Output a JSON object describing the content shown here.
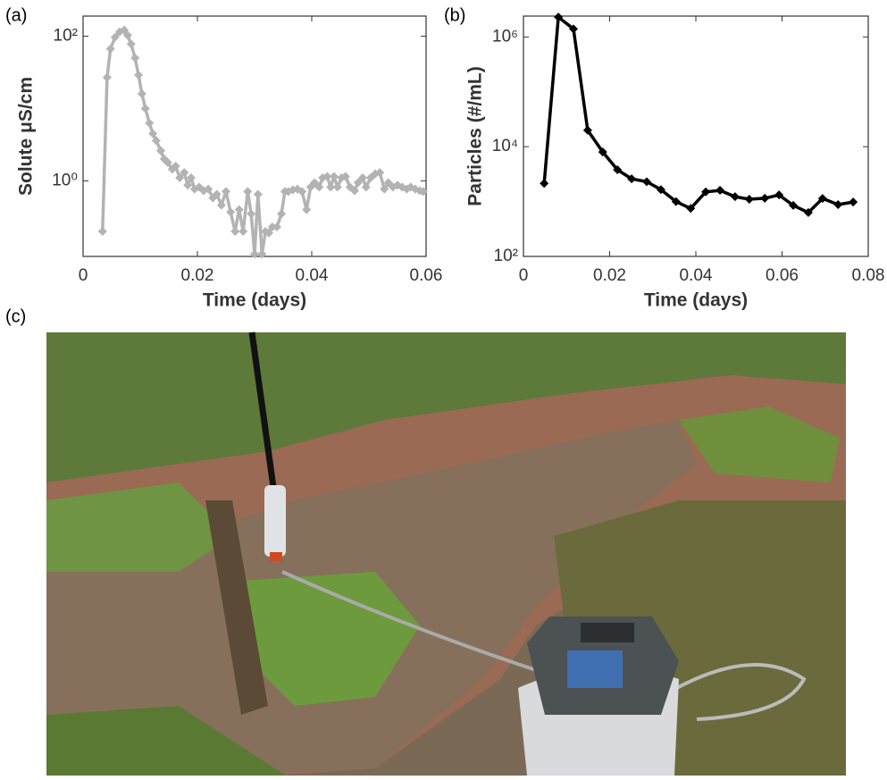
{
  "chart_data": [
    {
      "type": "line",
      "label": "(a)",
      "xlabel": "Time (days)",
      "ylabel": "Solute μS/cm",
      "color": "#b3b3b3",
      "log_y": true,
      "xlim": [
        0,
        0.06
      ],
      "xticks": [
        0,
        0.02,
        0.04,
        0.06
      ],
      "ylim": [
        0.09,
        190
      ],
      "yticks": [
        {
          "value": 1,
          "label": "10⁰"
        },
        {
          "value": 100,
          "label": "10²"
        }
      ],
      "x": [
        0.0034,
        0.0042,
        0.0048,
        0.0056,
        0.0064,
        0.0072,
        0.0078,
        0.0084,
        0.0091,
        0.0097,
        0.0103,
        0.0109,
        0.0116,
        0.0122,
        0.0128,
        0.0136,
        0.0142,
        0.0148,
        0.0156,
        0.0162,
        0.0169,
        0.0177,
        0.0183,
        0.0189,
        0.0195,
        0.0203,
        0.0211,
        0.0219,
        0.0227,
        0.0234,
        0.0242,
        0.025,
        0.0258,
        0.0266,
        0.0273,
        0.028,
        0.0288,
        0.0294,
        0.03,
        0.0306,
        0.0313,
        0.0319,
        0.0325,
        0.0331,
        0.0339,
        0.0347,
        0.0353,
        0.0359,
        0.0367,
        0.0375,
        0.0383,
        0.0391,
        0.0398,
        0.0405,
        0.0413,
        0.0419,
        0.0427,
        0.0433,
        0.0439,
        0.0445,
        0.0452,
        0.0459,
        0.0467,
        0.0475,
        0.0481,
        0.0489,
        0.0495,
        0.0503,
        0.0511,
        0.0519,
        0.0527,
        0.0534,
        0.0542,
        0.055,
        0.0558,
        0.0566,
        0.0573,
        0.0581,
        0.0589,
        0.0595
      ],
      "values": [
        0.2,
        27,
        67,
        97,
        115,
        122,
        103,
        78,
        50,
        29,
        16,
        10,
        6.3,
        4.5,
        3.6,
        2.6,
        2.0,
        1.8,
        1.45,
        1.6,
        1.1,
        1.3,
        0.87,
        1.1,
        0.77,
        0.82,
        0.73,
        0.77,
        0.58,
        0.65,
        0.46,
        0.71,
        0.37,
        0.2,
        0.4,
        0.2,
        0.71,
        0.35,
        0.097,
        0.65,
        0.097,
        0.2,
        0.19,
        0.23,
        0.23,
        0.35,
        0.71,
        0.71,
        0.75,
        0.77,
        0.71,
        0.4,
        0.82,
        0.94,
        0.82,
        1.1,
        1.15,
        0.82,
        1.15,
        0.82,
        1.1,
        1.15,
        0.82,
        0.73,
        0.94,
        1.1,
        0.82,
        1.1,
        1.25,
        1.3,
        0.77,
        0.94,
        0.82,
        0.87,
        0.82,
        0.77,
        0.82,
        0.77,
        0.73,
        0.71
      ]
    },
    {
      "type": "line",
      "label": "(b)",
      "xlabel": "Time (days)",
      "ylabel": "Particles (#/mL)",
      "color": "#000000",
      "log_y": true,
      "xlim": [
        0,
        0.08
      ],
      "xticks": [
        0,
        0.02,
        0.04,
        0.06,
        0.08
      ],
      "ylim": [
        100,
        2400000
      ],
      "yticks": [
        {
          "value": 100,
          "label": "10²"
        },
        {
          "value": 10000,
          "label": "10⁴"
        },
        {
          "value": 1000000,
          "label": "10⁶"
        }
      ],
      "x": [
        0.0048,
        0.0081,
        0.0116,
        0.0149,
        0.0184,
        0.0218,
        0.0251,
        0.0286,
        0.0319,
        0.0354,
        0.0388,
        0.0423,
        0.0456,
        0.0491,
        0.0524,
        0.056,
        0.0593,
        0.0626,
        0.0661,
        0.0694,
        0.073,
        0.0765
      ],
      "values": [
        2140,
        2300000,
        1400000,
        20000,
        8000,
        3800,
        2600,
        2300,
        1650,
        1000,
        750,
        1500,
        1600,
        1230,
        1100,
        1150,
        1320,
        850,
        630,
        1140,
        880,
        980
      ]
    }
  ],
  "photo": {
    "label": "(c)"
  }
}
